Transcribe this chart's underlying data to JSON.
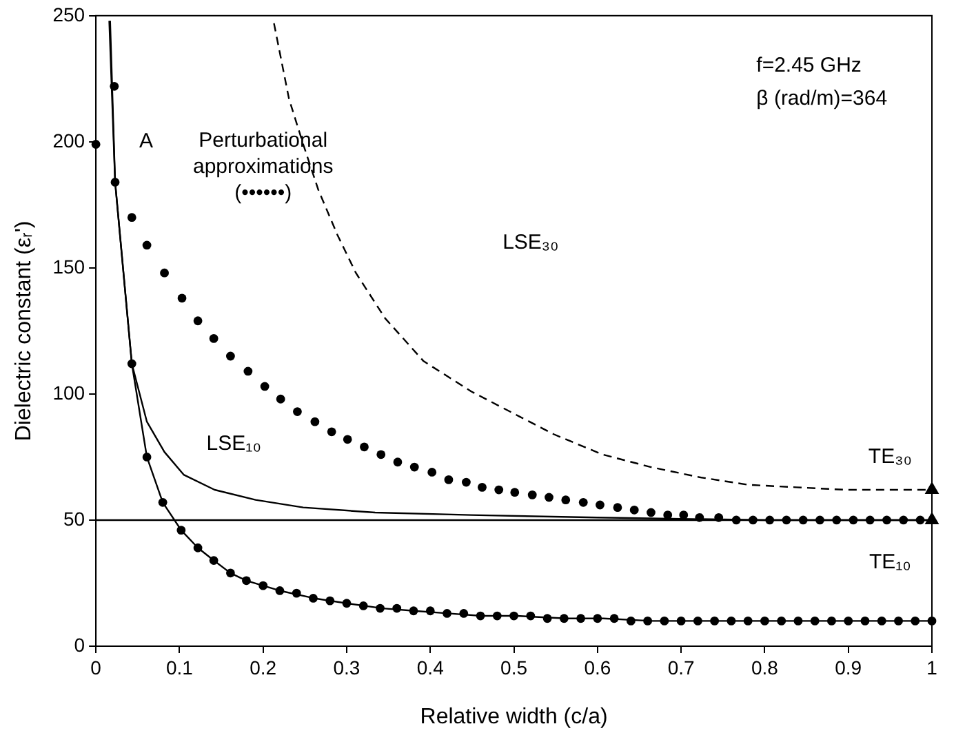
{
  "chart_data": {
    "type": "line",
    "xlabel": "Relative width (c/a)",
    "ylabel": "Dielectric constant (εᵣ')",
    "xlim": [
      0,
      1
    ],
    "xticks": [
      0,
      0.1,
      0.2,
      0.3,
      0.4,
      0.5,
      0.6,
      0.7,
      0.8,
      0.9,
      1
    ],
    "ylim": [
      0,
      250
    ],
    "yticks": [
      0,
      50,
      100,
      150,
      200,
      250
    ],
    "grid": false,
    "legend": false,
    "series": [
      {
        "type": "line",
        "color": "#000000",
        "marker": "none",
        "line_style": "solid",
        "x": [
          0.016,
          0.023,
          0.043,
          0.061,
          0.082,
          0.105,
          0.142,
          0.191,
          0.248,
          0.334,
          0.449,
          0.6,
          0.8,
          1.0
        ],
        "values": [
          248,
          184,
          112,
          89,
          77,
          68,
          62,
          58,
          55,
          53,
          52,
          51,
          50,
          50
        ]
      },
      {
        "type": "line",
        "color": "#000000",
        "marker": "none",
        "line_style": "solid",
        "x": [
          0.017,
          0.023,
          0.043,
          0.061,
          0.08,
          0.102,
          0.122,
          0.141,
          0.161,
          0.18,
          0.2,
          0.22,
          0.261,
          0.3,
          0.343,
          0.381,
          0.421,
          0.461,
          0.503,
          0.563,
          0.607,
          0.665,
          0.762,
          0.84,
          1.0
        ],
        "values": [
          248,
          184,
          112,
          75,
          57,
          46,
          39,
          34,
          29,
          26,
          24,
          22,
          19,
          17,
          15,
          14,
          13,
          12,
          12,
          11,
          11,
          10,
          10,
          10,
          10
        ]
      },
      {
        "type": "scatter",
        "color": "#000000",
        "marker": "circle",
        "x": [
          0,
          0.023,
          0.043,
          0.061,
          0.08,
          0.102,
          0.122,
          0.141,
          0.161,
          0.18,
          0.2,
          0.22,
          0.24,
          0.26,
          0.28,
          0.3,
          0.32,
          0.34,
          0.36,
          0.38,
          0.4,
          0.42,
          0.44,
          0.46,
          0.48,
          0.5,
          0.52,
          0.54,
          0.56,
          0.58,
          0.6,
          0.62,
          0.64,
          0.66,
          0.68,
          0.7,
          0.72,
          0.74,
          0.76,
          0.78,
          0.8,
          0.82,
          0.84,
          0.86,
          0.88,
          0.9,
          0.92,
          0.94,
          0.96,
          0.98,
          1.0
        ],
        "values": [
          199,
          184,
          112,
          75,
          57,
          46,
          39,
          34,
          29,
          26,
          24,
          22,
          21,
          19,
          18,
          17,
          16,
          15,
          15,
          14,
          14,
          13,
          13,
          12,
          12,
          12,
          12,
          11,
          11,
          11,
          11,
          11,
          10,
          10,
          10,
          10,
          10,
          10,
          10,
          10,
          10,
          10,
          10,
          10,
          10,
          10,
          10,
          10,
          10,
          10,
          10
        ]
      },
      {
        "type": "scatter",
        "color": "#000000",
        "marker": "circle",
        "x": [
          0.022,
          0.043,
          0.061,
          0.082,
          0.103,
          0.122,
          0.141,
          0.161,
          0.182,
          0.202,
          0.221,
          0.241,
          0.262,
          0.282,
          0.301,
          0.321,
          0.341,
          0.361,
          0.381,
          0.402,
          0.422,
          0.443,
          0.462,
          0.482,
          0.501,
          0.522,
          0.542,
          0.562,
          0.583,
          0.603,
          0.624,
          0.644,
          0.664,
          0.684,
          0.703,
          0.722,
          0.745,
          0.766,
          0.786,
          0.806,
          0.826,
          0.846,
          0.866,
          0.886,
          0.906,
          0.926,
          0.946,
          0.966,
          0.986
        ],
        "values": [
          222,
          170,
          159,
          148,
          138,
          129,
          122,
          115,
          109,
          103,
          98,
          93,
          89,
          85,
          82,
          79,
          76,
          73,
          71,
          69,
          66,
          65,
          63,
          62,
          61,
          60,
          59,
          58,
          57,
          56,
          55,
          54,
          53,
          52,
          52,
          51,
          51,
          50,
          50,
          50,
          50,
          50,
          50,
          50,
          50,
          50,
          50,
          50,
          50
        ]
      },
      {
        "type": "line",
        "color": "#000000",
        "marker": "none",
        "line_style": "dashed",
        "x": [
          0.213,
          0.231,
          0.248,
          0.266,
          0.289,
          0.311,
          0.346,
          0.392,
          0.449,
          0.507,
          0.548,
          0.606,
          0.664,
          0.722,
          0.78,
          0.838,
          0.897,
          1.0
        ],
        "values": [
          247,
          217,
          199,
          181,
          163,
          148,
          130,
          113,
          101,
          91,
          84,
          76,
          71,
          67,
          64,
          63,
          62,
          62
        ]
      },
      {
        "type": "line",
        "color": "#000000",
        "marker": "none",
        "line_style": "solid",
        "x": [
          0,
          1
        ],
        "values": [
          50,
          50
        ]
      },
      {
        "type": "scatter",
        "color": "#000000",
        "marker": "triangle",
        "x": [
          1,
          1
        ],
        "values": [
          62,
          50
        ]
      }
    ],
    "annotations": [
      "f=2.45 GHz",
      "β (rad/m)=364",
      "Perturbational approximations (••••••)",
      "A",
      "LSE₁₀",
      "LSE₃₀",
      "TE₃₀",
      "TE₁₀"
    ]
  }
}
